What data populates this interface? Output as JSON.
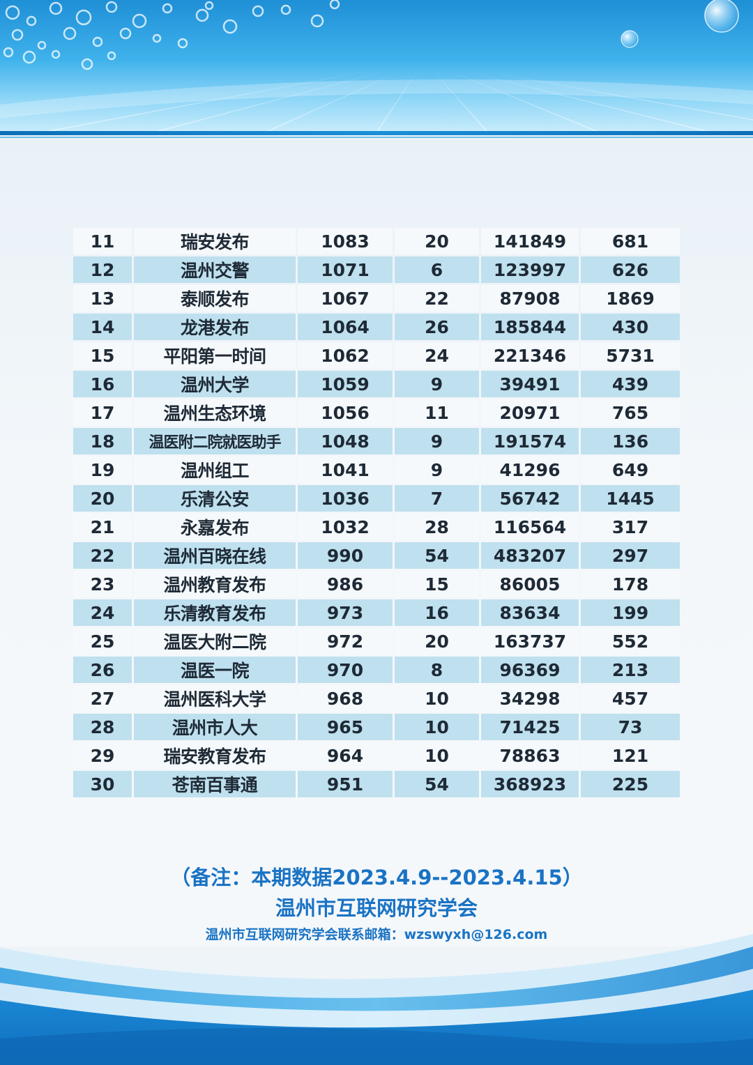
{
  "table": {
    "rows": [
      {
        "rank": "11",
        "name": "瑞安发布",
        "c3": "1083",
        "c4": "20",
        "c5": "141849",
        "c6": "681"
      },
      {
        "rank": "12",
        "name": "温州交警",
        "c3": "1071",
        "c4": "6",
        "c5": "123997",
        "c6": "626"
      },
      {
        "rank": "13",
        "name": "泰顺发布",
        "c3": "1067",
        "c4": "22",
        "c5": "87908",
        "c6": "1869"
      },
      {
        "rank": "14",
        "name": "龙港发布",
        "c3": "1064",
        "c4": "26",
        "c5": "185844",
        "c6": "430"
      },
      {
        "rank": "15",
        "name": "平阳第一时间",
        "c3": "1062",
        "c4": "24",
        "c5": "221346",
        "c6": "5731"
      },
      {
        "rank": "16",
        "name": "温州大学",
        "c3": "1059",
        "c4": "9",
        "c5": "39491",
        "c6": "439"
      },
      {
        "rank": "17",
        "name": "温州生态环境",
        "c3": "1056",
        "c4": "11",
        "c5": "20971",
        "c6": "765"
      },
      {
        "rank": "18",
        "name": "温医附二院就医助手",
        "c3": "1048",
        "c4": "9",
        "c5": "191574",
        "c6": "136"
      },
      {
        "rank": "19",
        "name": "温州组工",
        "c3": "1041",
        "c4": "9",
        "c5": "41296",
        "c6": "649"
      },
      {
        "rank": "20",
        "name": "乐清公安",
        "c3": "1036",
        "c4": "7",
        "c5": "56742",
        "c6": "1445"
      },
      {
        "rank": "21",
        "name": "永嘉发布",
        "c3": "1032",
        "c4": "28",
        "c5": "116564",
        "c6": "317"
      },
      {
        "rank": "22",
        "name": "温州百晓在线",
        "c3": "990",
        "c4": "54",
        "c5": "483207",
        "c6": "297"
      },
      {
        "rank": "23",
        "name": "温州教育发布",
        "c3": "986",
        "c4": "15",
        "c5": "86005",
        "c6": "178"
      },
      {
        "rank": "24",
        "name": "乐清教育发布",
        "c3": "973",
        "c4": "16",
        "c5": "83634",
        "c6": "199"
      },
      {
        "rank": "25",
        "name": "温医大附二院",
        "c3": "972",
        "c4": "20",
        "c5": "163737",
        "c6": "552"
      },
      {
        "rank": "26",
        "name": "温医一院",
        "c3": "970",
        "c4": "8",
        "c5": "96369",
        "c6": "213"
      },
      {
        "rank": "27",
        "name": "温州医科大学",
        "c3": "968",
        "c4": "10",
        "c5": "34298",
        "c6": "457"
      },
      {
        "rank": "28",
        "name": "温州市人大",
        "c3": "965",
        "c4": "10",
        "c5": "71425",
        "c6": "73"
      },
      {
        "rank": "29",
        "name": "瑞安教育发布",
        "c3": "964",
        "c4": "10",
        "c5": "78863",
        "c6": "121"
      },
      {
        "rank": "30",
        "name": "苍南百事通",
        "c3": "951",
        "c4": "54",
        "c5": "368923",
        "c6": "225"
      }
    ]
  },
  "footer": {
    "note": "（备注：本期数据2023.4.9--2023.4.15）",
    "organization": "温州市互联网研究学会",
    "contact": "温州市互联网研究学会联系邮箱：wzswyxh@126.com"
  },
  "colors": {
    "row_light": "#f6f9fb",
    "row_blue": "#bfe0ee",
    "text_blue": "#1a73c4",
    "text_dark": "#1e2a36"
  }
}
